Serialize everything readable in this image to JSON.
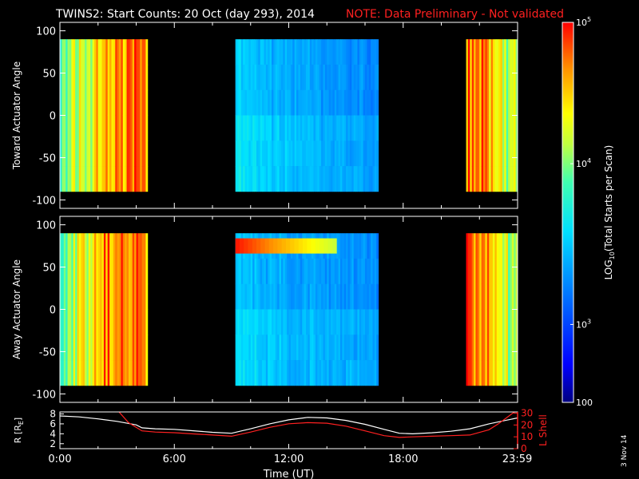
{
  "title": {
    "main": "TWINS2: Start Counts: 20 Oct (day 293), 2014",
    "note": "NOTE: Data Preliminary - Not validated",
    "note_color": "#ff2020"
  },
  "date_stamp": "3 Nov 14",
  "chart_data": [
    {
      "type": "heatmap",
      "name": "toward",
      "ylabel": "Toward Actuator Angle",
      "ylim": [
        -110,
        110
      ],
      "yticks": [
        "100",
        "50",
        "0",
        "-50",
        "-100"
      ],
      "ytick_values": [
        100,
        50,
        0,
        -50,
        -100
      ],
      "data_angle_range": [
        -90,
        90
      ],
      "x_range_hours": [
        0,
        24
      ],
      "coverage_hours": [
        [
          0,
          4.6
        ],
        [
          9.2,
          16.7
        ],
        [
          21.3,
          24
        ]
      ],
      "color_profile": [
        {
          "t": 0.0,
          "v": 0.62
        },
        {
          "t": 0.8,
          "v": 0.7
        },
        {
          "t": 1.6,
          "v": 0.72
        },
        {
          "t": 2.4,
          "v": 0.9
        },
        {
          "t": 3.2,
          "v": 0.86
        },
        {
          "t": 4.0,
          "v": 0.92
        },
        {
          "t": 4.6,
          "v": 0.84
        },
        {
          "t": 9.2,
          "v": 0.42
        },
        {
          "t": 11.0,
          "v": 0.36
        },
        {
          "t": 13.0,
          "v": 0.33
        },
        {
          "t": 15.0,
          "v": 0.3
        },
        {
          "t": 16.7,
          "v": 0.3
        },
        {
          "t": 21.3,
          "v": 0.9
        },
        {
          "t": 22.3,
          "v": 0.88
        },
        {
          "t": 23.2,
          "v": 0.7
        },
        {
          "t": 24.0,
          "v": 0.66
        }
      ]
    },
    {
      "type": "heatmap",
      "name": "away",
      "ylabel": "Away Actuator Angle",
      "ylim": [
        -110,
        110
      ],
      "yticks": [
        "100",
        "50",
        "0",
        "-50",
        "-100"
      ],
      "ytick_values": [
        100,
        50,
        0,
        -50,
        -100
      ],
      "data_angle_range": [
        -90,
        90
      ],
      "x_range_hours": [
        0,
        24
      ],
      "coverage_hours": [
        [
          0,
          4.6
        ],
        [
          9.2,
          16.7
        ],
        [
          21.3,
          24
        ]
      ],
      "annotations": [
        "high-count band near +75 deg from 9:12 to 14:00"
      ],
      "color_profile": [
        {
          "t": 0.0,
          "v": 0.62
        },
        {
          "t": 0.8,
          "v": 0.7
        },
        {
          "t": 1.6,
          "v": 0.74
        },
        {
          "t": 2.4,
          "v": 0.9
        },
        {
          "t": 3.2,
          "v": 0.88
        },
        {
          "t": 4.0,
          "v": 0.9
        },
        {
          "t": 4.6,
          "v": 0.84
        },
        {
          "t": 9.2,
          "v": 0.4
        },
        {
          "t": 11.0,
          "v": 0.35
        },
        {
          "t": 13.0,
          "v": 0.33
        },
        {
          "t": 15.0,
          "v": 0.31
        },
        {
          "t": 16.7,
          "v": 0.3
        },
        {
          "t": 21.3,
          "v": 0.9
        },
        {
          "t": 22.3,
          "v": 0.88
        },
        {
          "t": 23.2,
          "v": 0.7
        },
        {
          "t": 24.0,
          "v": 0.66
        }
      ]
    },
    {
      "type": "line",
      "name": "orbit",
      "ylabel": "R [R",
      "ylabel_sub": "E",
      "ylabel_end": "]",
      "ylim": [
        1,
        8.4
      ],
      "yticks": [
        "8",
        "6",
        "4",
        "2"
      ],
      "ytick_values": [
        8,
        6,
        4,
        2
      ],
      "y2label": "L Shell",
      "y2lim": [
        0,
        31
      ],
      "y2ticks": [
        "30",
        "20",
        "10",
        "0"
      ],
      "y2tick_values": [
        30,
        20,
        10,
        0
      ],
      "xlabel": "Time (UT)",
      "xticks": [
        "0:00",
        "6:00",
        "12:00",
        "18:00",
        "23:59"
      ],
      "xtick_values": [
        0,
        6,
        12,
        18,
        23.98
      ],
      "series": [
        {
          "color": "#ffffff",
          "axis": "left",
          "x": [
            0,
            1,
            2,
            3,
            4,
            4.3,
            5,
            6,
            7,
            8,
            9,
            10,
            11,
            12,
            13,
            14,
            15,
            16,
            17,
            17.8,
            18.5,
            19.5,
            20.5,
            21.5,
            22.5,
            23.5,
            24
          ],
          "y": [
            7.6,
            7.4,
            7.0,
            6.5,
            5.8,
            5.2,
            5.0,
            4.9,
            4.6,
            4.3,
            4.1,
            5.0,
            6.0,
            6.8,
            7.3,
            7.2,
            6.7,
            5.9,
            4.9,
            4.1,
            4.0,
            4.2,
            4.5,
            5.0,
            6.0,
            6.8,
            7.2
          ]
        },
        {
          "color": "#ff2020",
          "axis": "right",
          "x": [
            3.1,
            3.6,
            4.3,
            5.0,
            6.0,
            7.0,
            8.0,
            9.0,
            10.0,
            11.0,
            12.0,
            13.0,
            14.0,
            15.0,
            16.0,
            17.0,
            17.8,
            18.5,
            19.5,
            20.5,
            21.5,
            22.5,
            23.0,
            23.5,
            24.0
          ],
          "y": [
            31,
            22,
            15,
            14,
            13.5,
            12.5,
            11.5,
            10.5,
            14,
            18,
            21,
            22,
            21.5,
            19,
            15,
            11,
            9.5,
            10,
            10.5,
            11,
            11.5,
            16,
            21,
            27,
            33
          ]
        }
      ]
    }
  ],
  "colorbar": {
    "label": "LOG",
    "label_sub": "10",
    "label_end": "(Total Starts per Scan)",
    "ticks": [
      {
        "base": "10",
        "exp": "5",
        "frac": 1.0
      },
      {
        "base": "10",
        "exp": "4",
        "frac": 0.628
      },
      {
        "base": "10",
        "exp": "3",
        "frac": 0.205
      },
      {
        "base": "100",
        "exp": "",
        "frac": 0.0
      }
    ]
  }
}
